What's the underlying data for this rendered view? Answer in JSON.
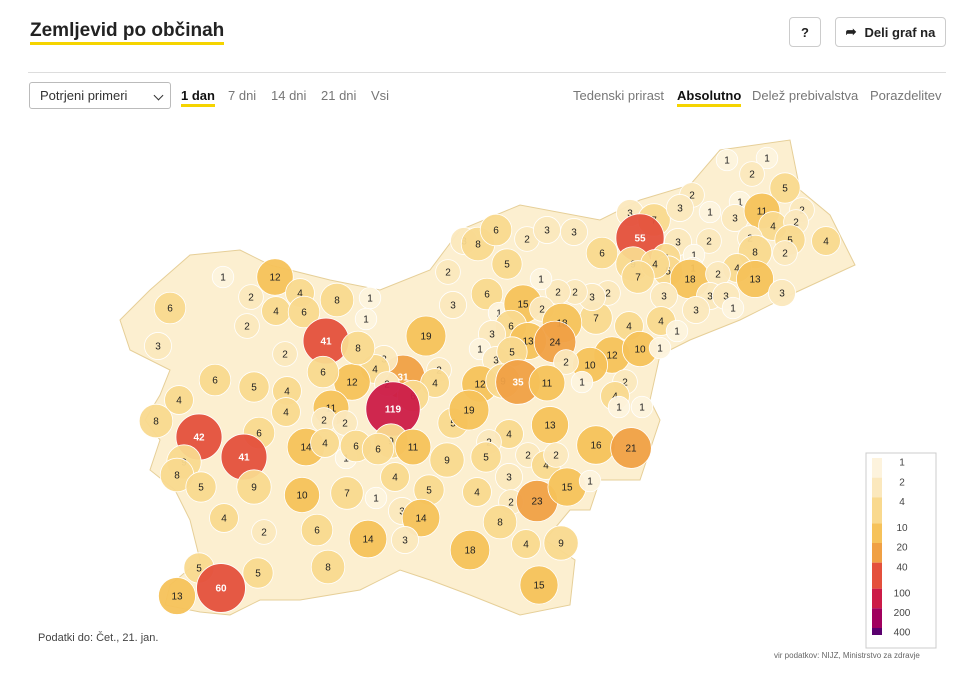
{
  "header": {
    "title": "Zemljevid po občinah",
    "help": "?",
    "share": "Deli graf na"
  },
  "controls": {
    "select": "Potrjeni primeri",
    "periods": [
      "1 dan",
      "7 dni",
      "14 dni",
      "21 dni",
      "Vsi"
    ],
    "active_period": 0,
    "metrics": [
      "Tedenski prirast",
      "Absolutno",
      "Delež prebivalstva",
      "Porazdelitev"
    ],
    "active_metric": 1
  },
  "map": {
    "values": [
      1,
      1,
      2,
      5,
      1,
      2,
      3,
      7,
      3,
      1,
      3,
      11,
      2,
      4,
      2,
      2,
      5,
      4,
      8,
      2,
      55,
      3,
      2,
      4,
      5,
      1,
      1,
      18,
      4,
      2,
      13,
      3,
      9,
      4,
      6,
      7,
      3,
      3,
      3,
      1,
      3,
      4,
      1,
      4,
      7,
      2,
      3,
      2,
      2,
      1,
      5,
      2,
      3,
      8,
      6,
      2,
      3,
      3,
      3,
      6,
      1,
      15,
      2,
      18,
      6,
      3,
      13,
      24,
      12,
      10,
      10,
      1,
      2,
      1,
      3,
      5,
      19,
      31,
      2,
      4,
      12,
      9,
      35,
      11,
      1,
      2,
      4,
      1,
      1,
      3,
      4,
      12,
      2,
      6,
      119,
      5,
      19,
      13,
      16,
      21,
      1,
      12,
      4,
      8,
      1,
      2,
      4,
      6,
      1,
      6,
      2,
      3,
      41,
      8,
      2,
      6,
      6,
      5,
      4,
      4,
      8,
      4,
      11,
      2,
      2,
      42,
      6,
      14,
      4,
      1,
      6,
      9,
      11,
      6,
      41,
      9,
      8,
      5,
      9,
      10,
      7,
      1,
      4,
      5,
      3,
      9,
      4,
      2,
      5,
      3,
      2,
      4,
      2,
      4,
      2,
      23,
      15,
      1,
      4,
      2,
      6,
      14,
      8,
      14,
      3,
      18,
      4,
      9,
      8,
      5,
      5,
      60,
      13,
      15
    ]
  },
  "legend": {
    "ticks": [
      1,
      2,
      4,
      10,
      20,
      40,
      100,
      200,
      400
    ],
    "colors": [
      "#fdf3dd",
      "#fbe8bd",
      "#f9d98e",
      "#f6c25a",
      "#f0a044",
      "#e4503c",
      "#cc1b47",
      "#a1005e",
      "#5a006e"
    ]
  },
  "footer": {
    "date": "Podatki do: Čet., 21. jan.",
    "source": "vir podatkov: NIJZ, Ministrstvo za zdravje"
  }
}
